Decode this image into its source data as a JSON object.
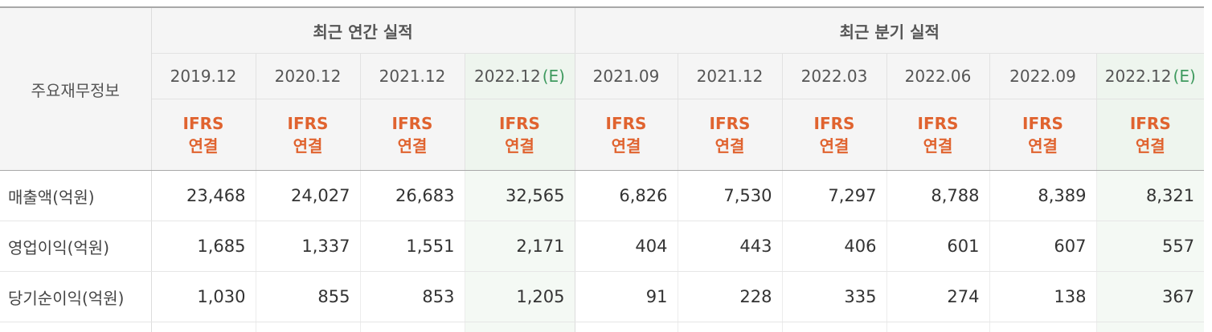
{
  "header": {
    "corner_label": "주요재무정보",
    "annual_group": "최근 연간 실적",
    "quarterly_group": "최근 분기 실적",
    "periods": [
      {
        "label": "2019.12",
        "estimate": ""
      },
      {
        "label": "2020.12",
        "estimate": ""
      },
      {
        "label": "2021.12",
        "estimate": ""
      },
      {
        "label": "2022.12",
        "estimate": "(E)"
      },
      {
        "label": "2021.09",
        "estimate": ""
      },
      {
        "label": "2021.12",
        "estimate": ""
      },
      {
        "label": "2022.03",
        "estimate": ""
      },
      {
        "label": "2022.06",
        "estimate": ""
      },
      {
        "label": "2022.09",
        "estimate": ""
      },
      {
        "label": "2022.12",
        "estimate": "(E)"
      }
    ],
    "accounting_line1": "IFRS",
    "accounting_line2": "연결"
  },
  "rows": [
    {
      "label": "매출액(억원)",
      "values": [
        "23,468",
        "24,027",
        "26,683",
        "32,565",
        "6,826",
        "7,530",
        "7,297",
        "8,788",
        "8,389",
        "8,321"
      ]
    },
    {
      "label": "영업이익(억원)",
      "values": [
        "1,685",
        "1,337",
        "1,551",
        "2,171",
        "404",
        "443",
        "406",
        "601",
        "607",
        "557"
      ]
    },
    {
      "label": "당기순이익(억원)",
      "values": [
        "1,030",
        "855",
        "853",
        "1,205",
        "91",
        "228",
        "335",
        "274",
        "138",
        "367"
      ]
    }
  ],
  "colors": {
    "accounting_text": "#e0632f",
    "estimate_text": "#3f9a5f",
    "estimate_bg": "#eef5ee",
    "header_bg": "#f5f5f5"
  }
}
